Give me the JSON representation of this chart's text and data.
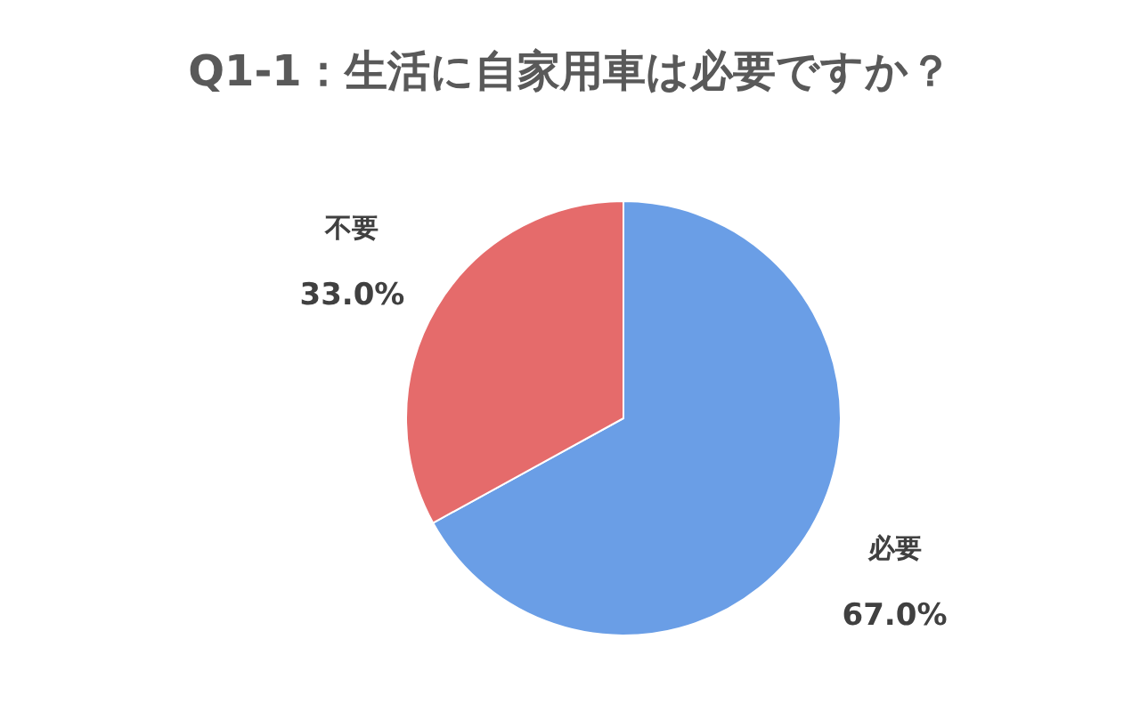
{
  "chart_data": {
    "type": "pie",
    "title": "Q1-1：生活に自家用車は必要ですか？",
    "categories": [
      "必要",
      "不要"
    ],
    "values": [
      67.0,
      33.0
    ],
    "colors": [
      "#6a9ee6",
      "#e56b6b"
    ],
    "value_labels": [
      "67.0%",
      "33.0%"
    ]
  }
}
